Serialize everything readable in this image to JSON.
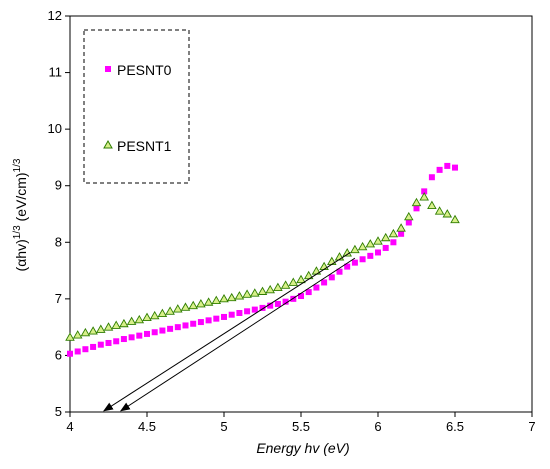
{
  "chart_data": {
    "type": "scatter",
    "xlabel": "Energy hv (eV)",
    "ylabel_parts": {
      "prefix": "(αhv)",
      "exp1": "1/3",
      "mid": " (eV/cm)",
      "exp2": "1/3"
    },
    "xlim": [
      4,
      7
    ],
    "ylim": [
      5,
      12
    ],
    "x_ticks": [
      "4",
      "4.5",
      "5",
      "5.5",
      "6",
      "6.5",
      "7"
    ],
    "y_ticks": [
      "5",
      "6",
      "7",
      "8",
      "9",
      "10",
      "11",
      "12"
    ],
    "grid": false,
    "legend_placement": "top-left",
    "series": [
      {
        "name": "PESNT0",
        "marker": "square",
        "color": "#ff00ff",
        "x": [
          4.0,
          4.05,
          4.1,
          4.15,
          4.2,
          4.25,
          4.3,
          4.35,
          4.4,
          4.45,
          4.5,
          4.55,
          4.6,
          4.65,
          4.7,
          4.75,
          4.8,
          4.85,
          4.9,
          4.95,
          5.0,
          5.05,
          5.1,
          5.15,
          5.2,
          5.25,
          5.3,
          5.35,
          5.4,
          5.45,
          5.5,
          5.55,
          5.6,
          5.65,
          5.7,
          5.75,
          5.8,
          5.85,
          5.9,
          5.95,
          6.0,
          6.05,
          6.1,
          6.15,
          6.2,
          6.25,
          6.3,
          6.35,
          6.4,
          6.45,
          6.5
        ],
        "y": [
          6.03,
          6.07,
          6.11,
          6.15,
          6.19,
          6.22,
          6.25,
          6.29,
          6.32,
          6.35,
          6.38,
          6.41,
          6.44,
          6.47,
          6.5,
          6.53,
          6.56,
          6.59,
          6.62,
          6.65,
          6.68,
          6.72,
          6.75,
          6.78,
          6.81,
          6.84,
          6.88,
          6.91,
          6.95,
          7.0,
          7.05,
          7.12,
          7.2,
          7.29,
          7.38,
          7.48,
          7.57,
          7.64,
          7.7,
          7.76,
          7.82,
          7.9,
          8.0,
          8.15,
          8.35,
          8.6,
          8.9,
          9.15,
          9.28,
          9.35,
          9.32
        ]
      },
      {
        "name": "PESNT1",
        "marker": "triangle",
        "color": "#66cc00",
        "x": [
          4.0,
          4.05,
          4.1,
          4.15,
          4.2,
          4.25,
          4.3,
          4.35,
          4.4,
          4.45,
          4.5,
          4.55,
          4.6,
          4.65,
          4.7,
          4.75,
          4.8,
          4.85,
          4.9,
          4.95,
          5.0,
          5.05,
          5.1,
          5.15,
          5.2,
          5.25,
          5.3,
          5.35,
          5.4,
          5.45,
          5.5,
          5.55,
          5.6,
          5.65,
          5.7,
          5.75,
          5.8,
          5.85,
          5.9,
          5.95,
          6.0,
          6.05,
          6.1,
          6.15,
          6.2,
          6.25,
          6.3,
          6.35,
          6.4,
          6.45,
          6.5
        ],
        "y": [
          6.32,
          6.36,
          6.4,
          6.43,
          6.46,
          6.5,
          6.53,
          6.56,
          6.6,
          6.63,
          6.67,
          6.7,
          6.74,
          6.78,
          6.82,
          6.85,
          6.88,
          6.91,
          6.94,
          6.97,
          7.0,
          7.02,
          7.05,
          7.08,
          7.1,
          7.13,
          7.16,
          7.2,
          7.24,
          7.29,
          7.34,
          7.41,
          7.49,
          7.57,
          7.66,
          7.74,
          7.81,
          7.87,
          7.92,
          7.97,
          8.02,
          8.08,
          8.15,
          8.25,
          8.45,
          8.7,
          8.8,
          8.65,
          8.55,
          8.5,
          8.4
        ]
      }
    ],
    "annotations": [
      {
        "type": "arrow",
        "from": [
          5.82,
          7.82
        ],
        "to": [
          4.22,
          5.02
        ]
      },
      {
        "type": "arrow",
        "from": [
          5.85,
          7.72
        ],
        "to": [
          4.33,
          5.02
        ]
      }
    ]
  }
}
